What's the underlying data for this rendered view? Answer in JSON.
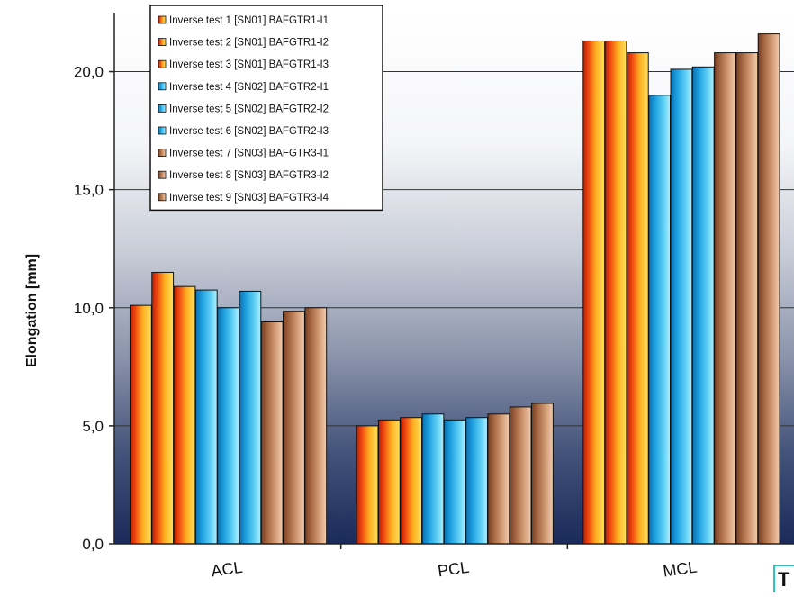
{
  "chart_data": {
    "type": "bar",
    "title": "",
    "xlabel": "",
    "ylabel": "Elongation [mm]",
    "ylim": [
      0,
      22.5
    ],
    "yticks": [
      "0,0",
      "5,0",
      "10,0",
      "15,0",
      "20,0"
    ],
    "grid": true,
    "legend_position": "top-left",
    "categories": [
      "ACL",
      "PCL",
      "MCL"
    ],
    "series": [
      {
        "name": "Inverse test 1 [SN01] BAFGTR1-I1",
        "values": [
          10.1,
          5.0,
          21.3
        ],
        "color": "#e8601a"
      },
      {
        "name": "Inverse test 2 [SN01] BAFGTR1-I2",
        "values": [
          11.5,
          5.25,
          21.3
        ],
        "color": "#e8601a"
      },
      {
        "name": "Inverse test 3 [SN01] BAFGTR1-I3",
        "values": [
          10.9,
          5.35,
          20.8
        ],
        "color": "#e8601a"
      },
      {
        "name": "Inverse test 4 [SN02] BAFGTR2-I1",
        "values": [
          10.75,
          5.5,
          19.0
        ],
        "color": "#1ba3d8"
      },
      {
        "name": "Inverse test 5 [SN02] BAFGTR2-I2",
        "values": [
          10.0,
          5.25,
          20.1
        ],
        "color": "#1ba3d8"
      },
      {
        "name": "Inverse test 6 [SN02] BAFGTR2-I3",
        "values": [
          10.7,
          5.35,
          20.2
        ],
        "color": "#1ba3d8"
      },
      {
        "name": "Inverse test 7 [SN03] BAFGTR3-I1",
        "values": [
          9.4,
          5.5,
          20.8
        ],
        "color": "#a86a44"
      },
      {
        "name": "Inverse test 8 [SN03] BAFGTR3-I2",
        "values": [
          9.85,
          5.8,
          20.8
        ],
        "color": "#a86a44"
      },
      {
        "name": "Inverse test 9 [SN03] BAFGTR3-I4",
        "values": [
          10.0,
          5.95,
          21.6
        ],
        "color": "#a86a44"
      }
    ]
  },
  "corner_label": "T"
}
